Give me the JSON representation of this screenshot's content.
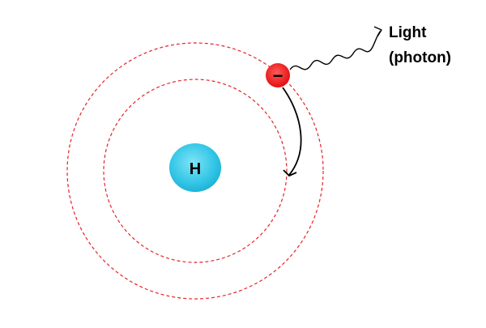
{
  "diagram": {
    "nucleus_label": "H",
    "electron_symbol": "−",
    "photon_label_line1": "Light",
    "photon_label_line2": "(photon)",
    "colors": {
      "orbit": "#e8212a",
      "nucleus_fill": "#33c6e6",
      "electron_fill": "#e81212",
      "arrow": "#000000",
      "text": "#000000"
    }
  }
}
